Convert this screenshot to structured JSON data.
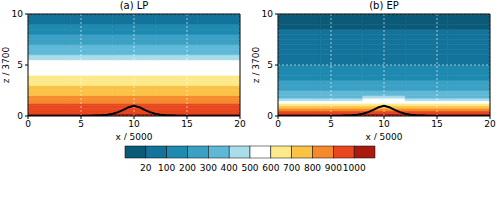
{
  "chart_data": [
    {
      "type": "heatmap",
      "title": "(a) LP",
      "xlabel": "x / 5000",
      "ylabel": "z / 3700",
      "xlim": [
        0,
        20
      ],
      "ylim": [
        0,
        10
      ],
      "xticks": [
        0,
        5,
        10,
        15,
        20
      ],
      "yticks": [
        0,
        5,
        10
      ],
      "grid": true,
      "x_bins": [
        0,
        4,
        8,
        12,
        16,
        20
      ],
      "y_bins": [
        0,
        0.25,
        0.5,
        0.75,
        1,
        1.25,
        1.5,
        1.75,
        2,
        2.5,
        3,
        3.5,
        4,
        4.5,
        5,
        5.5,
        6,
        6.5,
        7,
        7.5,
        8,
        8.5,
        9,
        9.5,
        10
      ],
      "cells": [
        [
          1020,
          1020,
          1030,
          1020,
          1020
        ],
        [
          960,
          960,
          970,
          960,
          960
        ],
        [
          940,
          940,
          950,
          940,
          940
        ],
        [
          920,
          920,
          930,
          920,
          920
        ],
        [
          905,
          905,
          910,
          905,
          905
        ],
        [
          870,
          870,
          880,
          870,
          870
        ],
        [
          850,
          850,
          860,
          850,
          850
        ],
        [
          820,
          820,
          830,
          820,
          820
        ],
        [
          780,
          780,
          780,
          780,
          780
        ],
        [
          730,
          730,
          730,
          730,
          730
        ],
        [
          690,
          690,
          690,
          690,
          690
        ],
        [
          650,
          650,
          650,
          650,
          650
        ],
        [
          590,
          590,
          590,
          590,
          590
        ],
        [
          550,
          550,
          550,
          550,
          550
        ],
        [
          510,
          510,
          510,
          510,
          510
        ],
        [
          450,
          450,
          450,
          450,
          450
        ],
        [
          380,
          380,
          380,
          380,
          380
        ],
        [
          320,
          320,
          320,
          320,
          320
        ],
        [
          260,
          260,
          260,
          260,
          260
        ],
        [
          210,
          210,
          210,
          210,
          210
        ],
        [
          160,
          160,
          160,
          160,
          160
        ],
        [
          110,
          110,
          110,
          110,
          110
        ],
        [
          70,
          70,
          70,
          70,
          70
        ],
        [
          25,
          25,
          25,
          25,
          25
        ]
      ],
      "line": {
        "x": [
          0,
          2,
          4,
          6,
          7,
          7.5,
          8,
          8.5,
          9,
          9.5,
          10,
          10.5,
          11,
          11.5,
          12,
          12.5,
          13,
          14,
          16,
          18,
          20
        ],
        "y": [
          0,
          0,
          0.01,
          0.03,
          0.08,
          0.13,
          0.22,
          0.38,
          0.6,
          0.86,
          1.0,
          0.86,
          0.6,
          0.38,
          0.22,
          0.13,
          0.08,
          0.03,
          0.01,
          0,
          0
        ],
        "color": "#000000"
      }
    },
    {
      "type": "heatmap",
      "title": "(b) EP",
      "xlabel": "x / 5000",
      "ylabel": "z / 3700",
      "xlim": [
        0,
        20
      ],
      "ylim": [
        0,
        10
      ],
      "xticks": [
        0,
        5,
        10,
        15,
        20
      ],
      "yticks": [
        0,
        5,
        10
      ],
      "grid": true,
      "x_bins": [
        0,
        4,
        8,
        12,
        16,
        20
      ],
      "y_bins": [
        0,
        0.25,
        0.5,
        0.75,
        1,
        1.25,
        1.5,
        1.75,
        2,
        2.5,
        3,
        3.5,
        4,
        4.5,
        5,
        5.5,
        6,
        6.5,
        7,
        7.5,
        8,
        8.5,
        9,
        9.5,
        10
      ],
      "cells": [
        [
          1010,
          1010,
          1020,
          1010,
          1010
        ],
        [
          930,
          930,
          960,
          930,
          930
        ],
        [
          840,
          840,
          880,
          840,
          840
        ],
        [
          720,
          720,
          780,
          720,
          720
        ],
        [
          620,
          620,
          680,
          620,
          620
        ],
        [
          540,
          540,
          590,
          540,
          540
        ],
        [
          450,
          450,
          500,
          450,
          450
        ],
        [
          380,
          380,
          420,
          380,
          380
        ],
        [
          320,
          320,
          330,
          320,
          320
        ],
        [
          270,
          270,
          270,
          270,
          270
        ],
        [
          230,
          230,
          230,
          230,
          230
        ],
        [
          190,
          190,
          190,
          190,
          190
        ],
        [
          160,
          160,
          160,
          160,
          160
        ],
        [
          130,
          130,
          130,
          130,
          130
        ],
        [
          95,
          95,
          95,
          95,
          95
        ],
        [
          75,
          75,
          75,
          75,
          75
        ],
        [
          60,
          60,
          60,
          60,
          60
        ],
        [
          50,
          50,
          50,
          50,
          50
        ],
        [
          40,
          40,
          40,
          40,
          40
        ],
        [
          30,
          30,
          30,
          30,
          30
        ],
        [
          22,
          22,
          22,
          22,
          22
        ],
        [
          15,
          15,
          15,
          15,
          15
        ],
        [
          10,
          10,
          10,
          10,
          10
        ],
        [
          5,
          5,
          5,
          5,
          5
        ]
      ],
      "line": {
        "x": [
          0,
          2,
          4,
          6,
          7,
          7.5,
          8,
          8.5,
          9,
          9.5,
          10,
          10.5,
          11,
          11.5,
          12,
          12.5,
          13,
          14,
          16,
          18,
          20
        ],
        "y": [
          0,
          0,
          0.01,
          0.03,
          0.08,
          0.13,
          0.22,
          0.38,
          0.6,
          0.86,
          1.0,
          0.86,
          0.6,
          0.38,
          0.22,
          0.13,
          0.08,
          0.03,
          0.01,
          0,
          0
        ],
        "color": "#000000"
      }
    }
  ],
  "colorbar": {
    "ticks": [
      20,
      100,
      200,
      300,
      400,
      500,
      600,
      700,
      800,
      900,
      1000
    ],
    "colors": [
      "#0a5a78",
      "#14739a",
      "#1f8ab0",
      "#3aa0c4",
      "#5fb8d6",
      "#a9dde9",
      "#ffffff",
      "#fde98a",
      "#fbc248",
      "#f58a2d",
      "#e8471f",
      "#a81c10"
    ]
  }
}
